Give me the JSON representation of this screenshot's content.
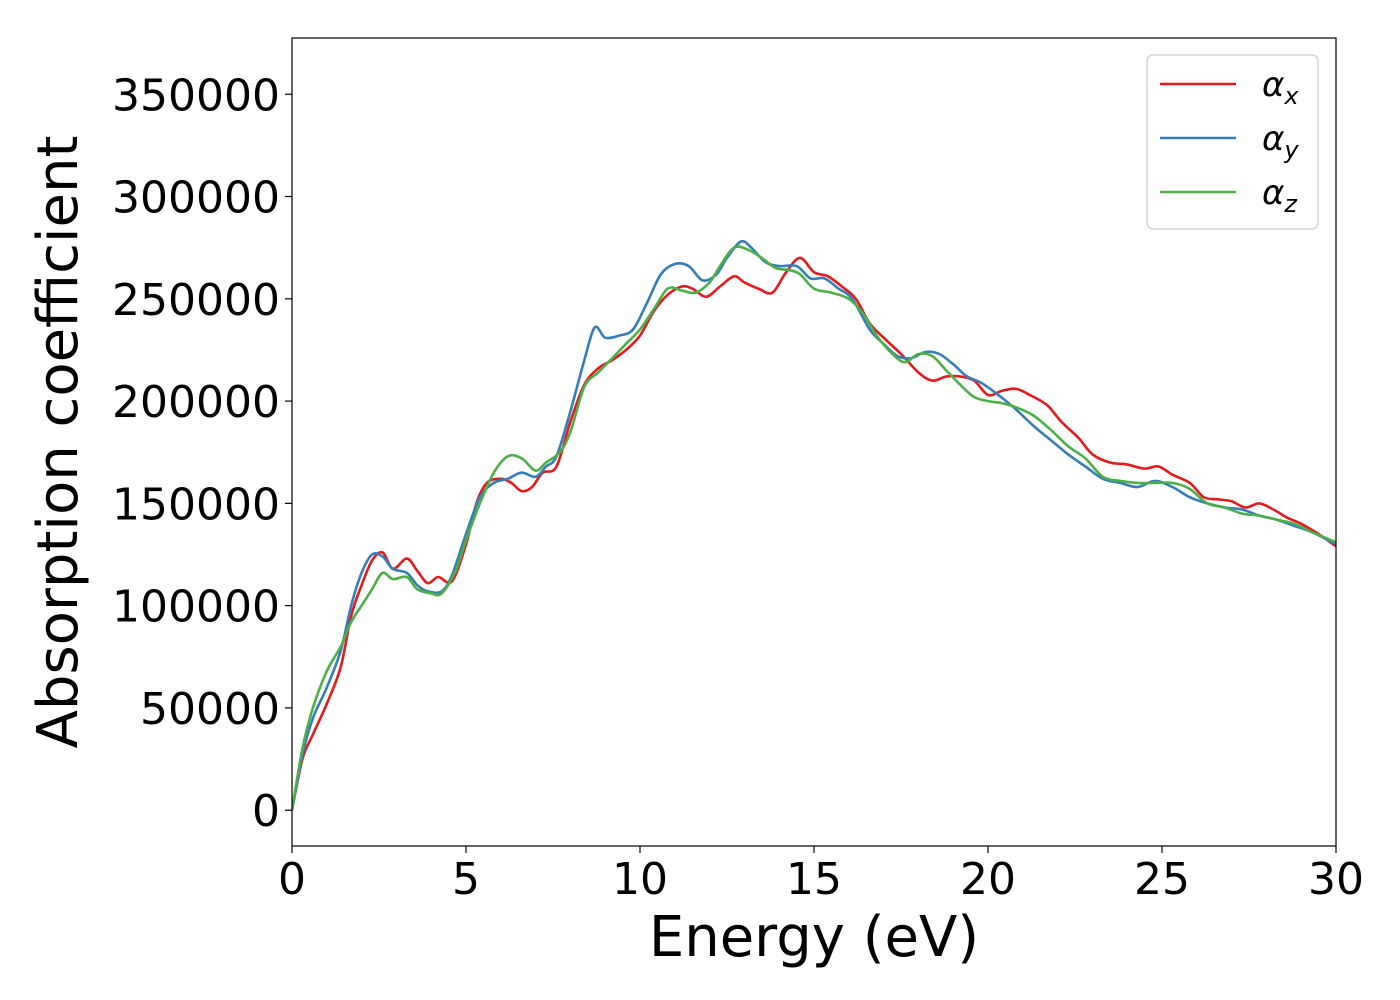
{
  "chart_data": {
    "type": "line",
    "title": "",
    "xlabel": "Energy (eV)",
    "ylabel": "Absorption coefficient",
    "xlim": [
      0,
      30
    ],
    "ylim": [
      -17500,
      377500
    ],
    "grid": false,
    "legend_position": "top-right",
    "x_ticks": [
      0,
      5,
      10,
      15,
      20,
      25,
      30
    ],
    "y_ticks": [
      0,
      50000,
      100000,
      150000,
      200000,
      250000,
      300000,
      350000
    ],
    "series": [
      {
        "name": "α",
        "name_sub": "x",
        "color": "#e41a1c",
        "points": [
          [
            0,
            0
          ],
          [
            0.3,
            25000
          ],
          [
            0.6,
            37000
          ],
          [
            1.0,
            52000
          ],
          [
            1.4,
            70000
          ],
          [
            1.7,
            95000
          ],
          [
            2.0,
            110000
          ],
          [
            2.3,
            122000
          ],
          [
            2.6,
            126000
          ],
          [
            2.9,
            118000
          ],
          [
            3.3,
            123000
          ],
          [
            3.6,
            117000
          ],
          [
            3.9,
            111000
          ],
          [
            4.2,
            114000
          ],
          [
            4.6,
            112000
          ],
          [
            5.0,
            130000
          ],
          [
            5.3,
            150000
          ],
          [
            5.6,
            160000
          ],
          [
            6.0,
            162000
          ],
          [
            6.3,
            160000
          ],
          [
            6.6,
            156000
          ],
          [
            6.9,
            158000
          ],
          [
            7.2,
            165000
          ],
          [
            7.6,
            168000
          ],
          [
            8.0,
            190000
          ],
          [
            8.4,
            208000
          ],
          [
            8.8,
            216000
          ],
          [
            9.2,
            220000
          ],
          [
            9.6,
            225000
          ],
          [
            10.0,
            232000
          ],
          [
            10.4,
            244000
          ],
          [
            10.8,
            252000
          ],
          [
            11.2,
            256000
          ],
          [
            11.5,
            255000
          ],
          [
            11.9,
            251000
          ],
          [
            12.3,
            256000
          ],
          [
            12.7,
            261000
          ],
          [
            13.0,
            258000
          ],
          [
            13.4,
            255000
          ],
          [
            13.8,
            253000
          ],
          [
            14.2,
            263000
          ],
          [
            14.6,
            270000
          ],
          [
            15.0,
            263000
          ],
          [
            15.4,
            261000
          ],
          [
            15.8,
            256000
          ],
          [
            16.2,
            250000
          ],
          [
            16.6,
            238000
          ],
          [
            17.0,
            231000
          ],
          [
            17.5,
            223000
          ],
          [
            18.0,
            214000
          ],
          [
            18.4,
            210000
          ],
          [
            18.8,
            212000
          ],
          [
            19.2,
            212000
          ],
          [
            19.6,
            210000
          ],
          [
            20.0,
            203000
          ],
          [
            20.4,
            205000
          ],
          [
            20.8,
            206000
          ],
          [
            21.2,
            203000
          ],
          [
            21.7,
            198000
          ],
          [
            22.1,
            190000
          ],
          [
            22.6,
            182000
          ],
          [
            23.0,
            174000
          ],
          [
            23.5,
            170000
          ],
          [
            24.0,
            169000
          ],
          [
            24.5,
            167000
          ],
          [
            24.9,
            168000
          ],
          [
            25.3,
            164000
          ],
          [
            25.8,
            160000
          ],
          [
            26.2,
            153000
          ],
          [
            26.6,
            152000
          ],
          [
            27.0,
            151000
          ],
          [
            27.4,
            148000
          ],
          [
            27.8,
            150000
          ],
          [
            28.2,
            147000
          ],
          [
            28.6,
            143000
          ],
          [
            29.0,
            140000
          ],
          [
            29.5,
            135000
          ],
          [
            30.0,
            129000
          ]
        ]
      },
      {
        "name": "α",
        "name_sub": "y",
        "color": "#377eb8",
        "points": [
          [
            0,
            0
          ],
          [
            0.3,
            27000
          ],
          [
            0.6,
            45000
          ],
          [
            1.0,
            60000
          ],
          [
            1.4,
            78000
          ],
          [
            1.7,
            100000
          ],
          [
            2.0,
            116000
          ],
          [
            2.3,
            125000
          ],
          [
            2.6,
            124000
          ],
          [
            2.9,
            118000
          ],
          [
            3.3,
            116000
          ],
          [
            3.6,
            110000
          ],
          [
            3.9,
            107000
          ],
          [
            4.3,
            107000
          ],
          [
            4.6,
            115000
          ],
          [
            5.0,
            135000
          ],
          [
            5.4,
            153000
          ],
          [
            5.8,
            160000
          ],
          [
            6.2,
            162000
          ],
          [
            6.6,
            165000
          ],
          [
            7.0,
            163000
          ],
          [
            7.3,
            168000
          ],
          [
            7.6,
            173000
          ],
          [
            8.0,
            195000
          ],
          [
            8.4,
            220000
          ],
          [
            8.7,
            236000
          ],
          [
            9.0,
            231000
          ],
          [
            9.4,
            232000
          ],
          [
            9.8,
            235000
          ],
          [
            10.2,
            248000
          ],
          [
            10.6,
            262000
          ],
          [
            11.0,
            267000
          ],
          [
            11.4,
            266000
          ],
          [
            11.8,
            259000
          ],
          [
            12.2,
            262000
          ],
          [
            12.5,
            270000
          ],
          [
            12.9,
            278000
          ],
          [
            13.2,
            275000
          ],
          [
            13.6,
            268000
          ],
          [
            14.0,
            266000
          ],
          [
            14.5,
            266000
          ],
          [
            14.9,
            260000
          ],
          [
            15.3,
            260000
          ],
          [
            15.7,
            255000
          ],
          [
            16.1,
            250000
          ],
          [
            16.6,
            235000
          ],
          [
            17.0,
            228000
          ],
          [
            17.4,
            222000
          ],
          [
            17.8,
            221000
          ],
          [
            18.2,
            224000
          ],
          [
            18.6,
            223000
          ],
          [
            19.0,
            218000
          ],
          [
            19.4,
            212000
          ],
          [
            19.8,
            209000
          ],
          [
            20.3,
            203000
          ],
          [
            20.8,
            196000
          ],
          [
            21.3,
            188000
          ],
          [
            21.8,
            181000
          ],
          [
            22.3,
            174000
          ],
          [
            22.8,
            168000
          ],
          [
            23.3,
            162000
          ],
          [
            23.8,
            160000
          ],
          [
            24.3,
            158000
          ],
          [
            24.8,
            161000
          ],
          [
            25.3,
            158000
          ],
          [
            25.8,
            153000
          ],
          [
            26.3,
            150000
          ],
          [
            26.8,
            148000
          ],
          [
            27.3,
            147000
          ],
          [
            27.8,
            144000
          ],
          [
            28.3,
            142000
          ],
          [
            28.8,
            139000
          ],
          [
            29.3,
            136000
          ],
          [
            30.0,
            130000
          ]
        ]
      },
      {
        "name": "α",
        "name_sub": "z",
        "color": "#4daf4a",
        "points": [
          [
            0,
            0
          ],
          [
            0.3,
            30000
          ],
          [
            0.6,
            50000
          ],
          [
            1.0,
            68000
          ],
          [
            1.4,
            80000
          ],
          [
            1.7,
            92000
          ],
          [
            2.0,
            100000
          ],
          [
            2.3,
            108000
          ],
          [
            2.6,
            116000
          ],
          [
            2.9,
            113000
          ],
          [
            3.3,
            114000
          ],
          [
            3.6,
            108000
          ],
          [
            4.0,
            106000
          ],
          [
            4.3,
            106000
          ],
          [
            4.7,
            117000
          ],
          [
            5.0,
            132000
          ],
          [
            5.4,
            150000
          ],
          [
            5.8,
            165000
          ],
          [
            6.2,
            173000
          ],
          [
            6.6,
            172000
          ],
          [
            7.0,
            166000
          ],
          [
            7.3,
            170000
          ],
          [
            7.7,
            175000
          ],
          [
            8.0,
            185000
          ],
          [
            8.4,
            207000
          ],
          [
            8.8,
            214000
          ],
          [
            9.2,
            221000
          ],
          [
            9.6,
            228000
          ],
          [
            10.0,
            235000
          ],
          [
            10.4,
            245000
          ],
          [
            10.8,
            255000
          ],
          [
            11.2,
            254000
          ],
          [
            11.6,
            253000
          ],
          [
            12.0,
            258000
          ],
          [
            12.3,
            266000
          ],
          [
            12.7,
            275000
          ],
          [
            13.1,
            274000
          ],
          [
            13.5,
            270000
          ],
          [
            13.9,
            265000
          ],
          [
            14.3,
            264000
          ],
          [
            14.6,
            262000
          ],
          [
            15.0,
            255000
          ],
          [
            15.5,
            253000
          ],
          [
            16.0,
            250000
          ],
          [
            16.4,
            243000
          ],
          [
            16.8,
            232000
          ],
          [
            17.2,
            224000
          ],
          [
            17.6,
            219000
          ],
          [
            18.0,
            223000
          ],
          [
            18.4,
            222000
          ],
          [
            18.8,
            215000
          ],
          [
            19.2,
            208000
          ],
          [
            19.6,
            202000
          ],
          [
            20.0,
            200000
          ],
          [
            20.4,
            199000
          ],
          [
            20.8,
            197000
          ],
          [
            21.3,
            193000
          ],
          [
            21.8,
            186000
          ],
          [
            22.3,
            178000
          ],
          [
            22.8,
            172000
          ],
          [
            23.3,
            163000
          ],
          [
            23.8,
            161000
          ],
          [
            24.3,
            160000
          ],
          [
            24.8,
            160000
          ],
          [
            25.3,
            160000
          ],
          [
            25.8,
            157000
          ],
          [
            26.3,
            150000
          ],
          [
            26.8,
            148000
          ],
          [
            27.3,
            145000
          ],
          [
            27.8,
            144000
          ],
          [
            28.3,
            142000
          ],
          [
            28.8,
            140000
          ],
          [
            29.3,
            136000
          ],
          [
            30.0,
            131000
          ]
        ]
      }
    ]
  }
}
